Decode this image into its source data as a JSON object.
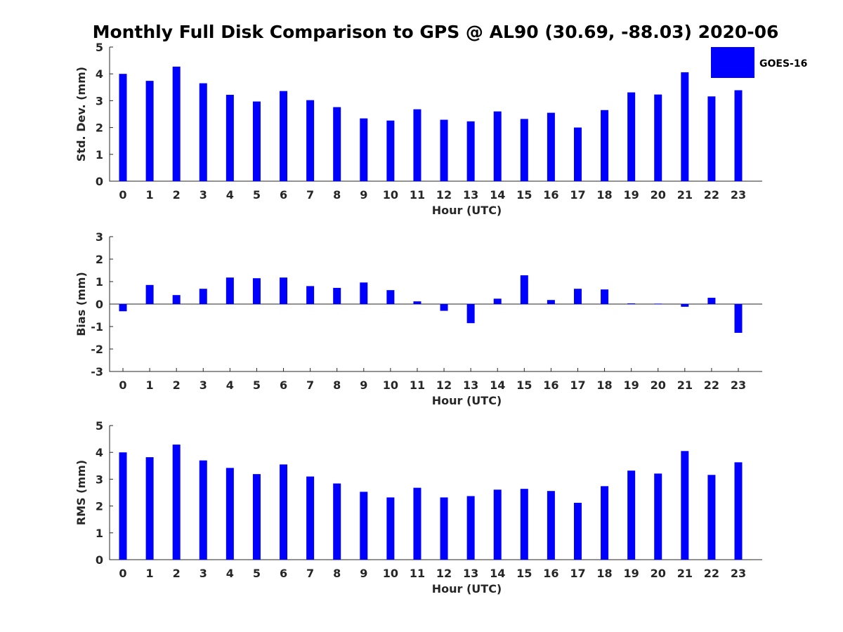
{
  "title": "Monthly Full Disk Comparison to GPS @ AL90 (30.69, -88.03) 2020-06",
  "legend": {
    "label": "GOES-16",
    "color": "#0000ff",
    "placement": "top-right"
  },
  "chart_data": [
    {
      "type": "bar",
      "categories": [
        "0",
        "1",
        "2",
        "3",
        "4",
        "5",
        "6",
        "7",
        "8",
        "9",
        "10",
        "11",
        "12",
        "13",
        "14",
        "15",
        "16",
        "17",
        "18",
        "19",
        "20",
        "21",
        "22",
        "23"
      ],
      "series": [
        {
          "name": "GOES-16",
          "color": "#0000ff",
          "values": [
            4.0,
            3.74,
            4.27,
            3.65,
            3.22,
            2.97,
            3.36,
            3.02,
            2.76,
            2.34,
            2.26,
            2.68,
            2.29,
            2.23,
            2.6,
            2.32,
            2.55,
            2.0,
            2.65,
            3.31,
            3.23,
            4.06,
            3.16,
            3.39
          ]
        }
      ],
      "xlabel": "Hour (UTC)",
      "ylabel": "Std. Dev. (mm)",
      "ylim": [
        0,
        5
      ],
      "yticks": [
        "0",
        "1",
        "2",
        "3",
        "4",
        "5"
      ],
      "grid": false
    },
    {
      "type": "bar",
      "categories": [
        "0",
        "1",
        "2",
        "3",
        "4",
        "5",
        "6",
        "7",
        "8",
        "9",
        "10",
        "11",
        "12",
        "13",
        "14",
        "15",
        "16",
        "17",
        "18",
        "19",
        "20",
        "21",
        "22",
        "23"
      ],
      "series": [
        {
          "name": "GOES-16",
          "color": "#0000ff",
          "values": [
            -0.32,
            0.85,
            0.4,
            0.68,
            1.18,
            1.15,
            1.18,
            0.8,
            0.72,
            0.96,
            0.62,
            0.12,
            -0.3,
            -0.85,
            0.24,
            1.28,
            0.18,
            0.68,
            0.65,
            0.03,
            0.02,
            -0.12,
            0.28,
            -1.28
          ]
        }
      ],
      "xlabel": "Hour (UTC)",
      "ylabel": "Bias (mm)",
      "ylim": [
        -3,
        3
      ],
      "yticks": [
        "-3",
        "-2",
        "-1",
        "0",
        "1",
        "2",
        "3"
      ],
      "grid": false
    },
    {
      "type": "bar",
      "categories": [
        "0",
        "1",
        "2",
        "3",
        "4",
        "5",
        "6",
        "7",
        "8",
        "9",
        "10",
        "11",
        "12",
        "13",
        "14",
        "15",
        "16",
        "17",
        "18",
        "19",
        "20",
        "21",
        "22",
        "23"
      ],
      "series": [
        {
          "name": "GOES-16",
          "color": "#0000ff",
          "values": [
            4.0,
            3.82,
            4.29,
            3.7,
            3.42,
            3.19,
            3.55,
            3.1,
            2.84,
            2.53,
            2.32,
            2.68,
            2.32,
            2.37,
            2.61,
            2.64,
            2.56,
            2.12,
            2.74,
            3.32,
            3.21,
            4.05,
            3.16,
            3.63
          ]
        }
      ],
      "xlabel": "Hour (UTC)",
      "ylabel": "RMS (mm)",
      "ylim": [
        0,
        5
      ],
      "yticks": [
        "0",
        "1",
        "2",
        "3",
        "4",
        "5"
      ],
      "grid": false
    }
  ]
}
